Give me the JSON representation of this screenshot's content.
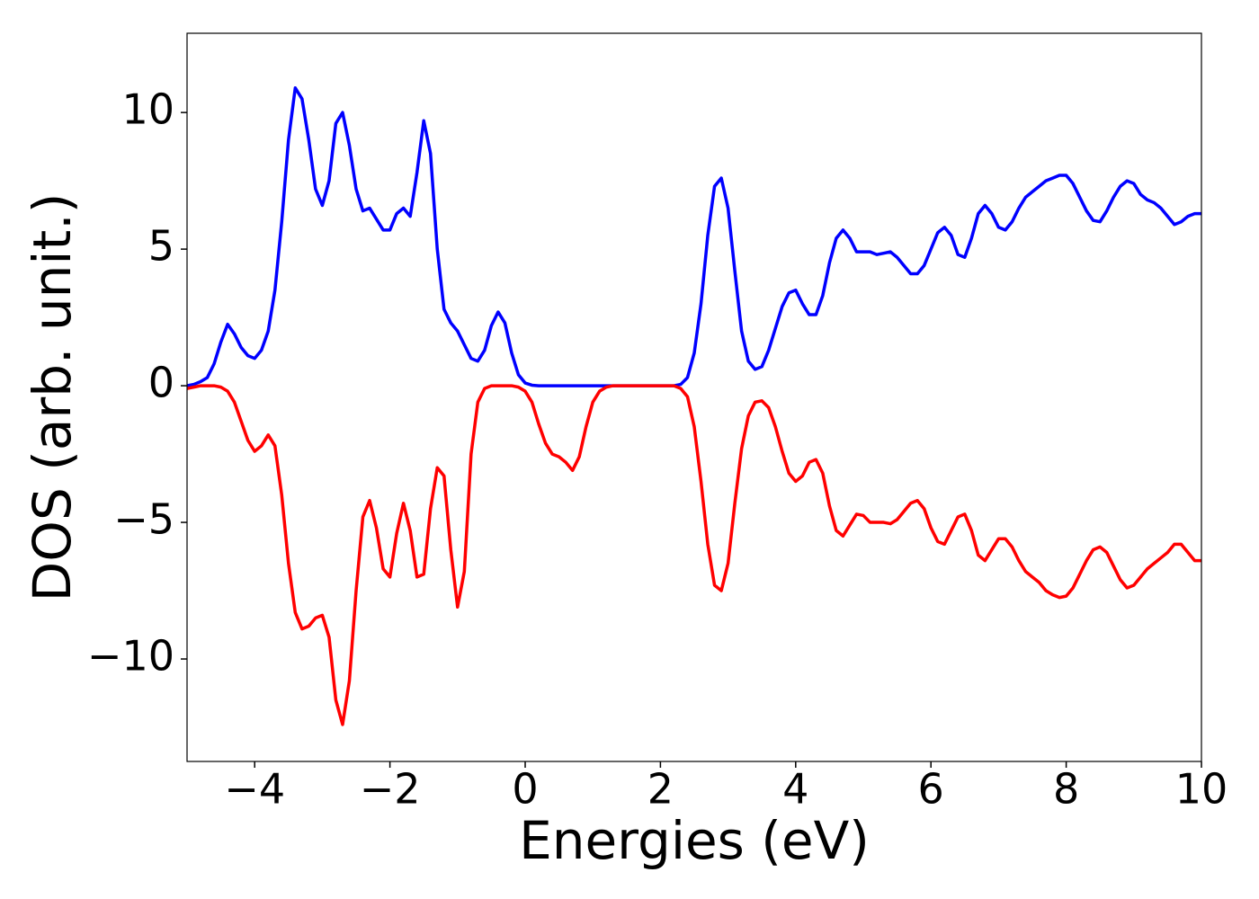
{
  "chart_data": {
    "type": "line",
    "xlabel": "Energies (eV)",
    "ylabel": "DOS (arb. unit.)",
    "xlim": [
      -5,
      10
    ],
    "ylim": [
      -13.75,
      12.9
    ],
    "xticks": [
      {
        "value": -4,
        "label": "−4"
      },
      {
        "value": -2,
        "label": "−2"
      },
      0,
      2,
      4,
      6,
      8,
      10
    ],
    "yticks": [
      {
        "value": -10,
        "label": "−10"
      },
      {
        "value": -5,
        "label": "−5"
      },
      0,
      5,
      10
    ],
    "grid": false,
    "x": [
      -5,
      -4.9,
      -4.8,
      -4.7,
      -4.6,
      -4.5,
      -4.4,
      -4.3,
      -4.2,
      -4.1,
      -4,
      -3.9,
      -3.8,
      -3.7,
      -3.6,
      -3.5,
      -3.4,
      -3.3,
      -3.2,
      -3.1,
      -3,
      -2.9,
      -2.8,
      -2.7,
      -2.6,
      -2.5,
      -2.4,
      -2.3,
      -2.2,
      -2.1,
      -2,
      -1.9,
      -1.8,
      -1.7,
      -1.6,
      -1.5,
      -1.4,
      -1.3,
      -1.2,
      -1.1,
      -1,
      -0.9,
      -0.8,
      -0.7,
      -0.6,
      -0.5,
      -0.4,
      -0.3,
      -0.2,
      -0.1,
      0,
      0.1,
      0.2,
      0.3,
      0.4,
      0.5,
      0.6,
      0.7,
      0.8,
      0.9,
      1,
      1.1,
      1.2,
      1.3,
      1.4,
      1.5,
      1.6,
      1.7,
      1.8,
      1.9,
      2,
      2.1,
      2.2,
      2.3,
      2.4,
      2.5,
      2.6,
      2.7,
      2.8,
      2.9,
      3,
      3.1,
      3.2,
      3.3,
      3.4,
      3.5,
      3.6,
      3.7,
      3.8,
      3.9,
      4,
      4.1,
      4.2,
      4.3,
      4.4,
      4.5,
      4.6,
      4.7,
      4.8,
      4.9,
      5,
      5.1,
      5.2,
      5.3,
      5.4,
      5.5,
      5.6,
      5.7,
      5.8,
      5.9,
      6,
      6.1,
      6.2,
      6.3,
      6.4,
      6.5,
      6.6,
      6.7,
      6.8,
      6.9,
      7,
      7.1,
      7.2,
      7.3,
      7.4,
      7.5,
      7.6,
      7.7,
      7.8,
      7.9,
      8,
      8.1,
      8.2,
      8.3,
      8.4,
      8.5,
      8.6,
      8.7,
      8.8,
      8.9,
      9,
      9.1,
      9.2,
      9.3,
      9.4,
      9.5,
      9.6,
      9.7,
      9.8,
      9.9,
      10
    ],
    "series": [
      {
        "color": "#0000ff",
        "values": [
          0,
          0.05,
          0.15,
          0.3,
          0.8,
          1.6,
          2.25,
          1.9,
          1.4,
          1.1,
          1.0,
          1.3,
          2.0,
          3.5,
          6.0,
          9.0,
          10.9,
          10.5,
          9.0,
          7.2,
          6.6,
          7.5,
          9.6,
          10.0,
          8.8,
          7.2,
          6.4,
          6.5,
          6.1,
          5.7,
          5.7,
          6.3,
          6.5,
          6.2,
          7.8,
          9.7,
          8.5,
          5.0,
          2.8,
          2.3,
          2.0,
          1.5,
          1.0,
          0.9,
          1.3,
          2.2,
          2.7,
          2.3,
          1.2,
          0.4,
          0.1,
          0.02,
          0,
          0,
          0,
          0,
          0,
          0,
          0,
          0,
          0,
          0,
          0,
          0,
          0,
          0,
          0,
          0,
          0,
          0,
          0,
          0,
          0,
          0.05,
          0.3,
          1.2,
          3.0,
          5.5,
          7.3,
          7.6,
          6.5,
          4.2,
          2.0,
          0.9,
          0.6,
          0.7,
          1.3,
          2.1,
          2.9,
          3.4,
          3.5,
          3.0,
          2.6,
          2.6,
          3.3,
          4.5,
          5.4,
          5.7,
          5.4,
          4.9,
          4.9,
          4.9,
          4.8,
          4.85,
          4.9,
          4.7,
          4.4,
          4.1,
          4.1,
          4.4,
          5.0,
          5.6,
          5.8,
          5.5,
          4.8,
          4.7,
          5.4,
          6.3,
          6.6,
          6.3,
          5.8,
          5.7,
          6.0,
          6.5,
          6.9,
          7.1,
          7.3,
          7.5,
          7.6,
          7.7,
          7.7,
          7.4,
          6.9,
          6.4,
          6.05,
          6.0,
          6.4,
          6.9,
          7.3,
          7.5,
          7.4,
          7.0,
          6.8,
          6.7,
          6.5,
          6.2,
          5.9,
          6.0,
          6.2,
          6.3,
          6.3
        ]
      },
      {
        "color": "#ff0000",
        "values": [
          -0.1,
          -0.05,
          0,
          0,
          0,
          -0.05,
          -0.2,
          -0.6,
          -1.3,
          -2.0,
          -2.4,
          -2.2,
          -1.8,
          -2.2,
          -4.0,
          -6.5,
          -8.3,
          -8.9,
          -8.8,
          -8.5,
          -8.4,
          -9.2,
          -11.5,
          -12.4,
          -10.8,
          -7.5,
          -4.8,
          -4.2,
          -5.2,
          -6.7,
          -7.0,
          -5.4,
          -4.3,
          -5.3,
          -7.0,
          -6.9,
          -4.5,
          -3.0,
          -3.3,
          -6.0,
          -8.1,
          -6.8,
          -2.5,
          -0.6,
          -0.1,
          0,
          0,
          0,
          0,
          -0.05,
          -0.2,
          -0.6,
          -1.4,
          -2.1,
          -2.5,
          -2.6,
          -2.8,
          -3.1,
          -2.6,
          -1.5,
          -0.6,
          -0.2,
          -0.05,
          0,
          0,
          0,
          0,
          0,
          0,
          0,
          0,
          0,
          0,
          -0.1,
          -0.4,
          -1.5,
          -3.5,
          -5.8,
          -7.3,
          -7.5,
          -6.5,
          -4.3,
          -2.3,
          -1.1,
          -0.6,
          -0.55,
          -0.8,
          -1.5,
          -2.4,
          -3.2,
          -3.5,
          -3.3,
          -2.8,
          -2.7,
          -3.2,
          -4.4,
          -5.3,
          -5.5,
          -5.1,
          -4.7,
          -4.75,
          -5.0,
          -5.0,
          -5.0,
          -5.05,
          -4.9,
          -4.6,
          -4.3,
          -4.2,
          -4.5,
          -5.2,
          -5.7,
          -5.8,
          -5.3,
          -4.8,
          -4.7,
          -5.3,
          -6.2,
          -6.4,
          -6.0,
          -5.6,
          -5.6,
          -5.9,
          -6.4,
          -6.8,
          -7.0,
          -7.2,
          -7.5,
          -7.65,
          -7.75,
          -7.7,
          -7.4,
          -6.9,
          -6.4,
          -6.0,
          -5.9,
          -6.1,
          -6.6,
          -7.1,
          -7.4,
          -7.3,
          -7.0,
          -6.7,
          -6.5,
          -6.3,
          -6.1,
          -5.8,
          -5.8,
          -6.1,
          -6.4,
          -6.4
        ]
      }
    ]
  }
}
